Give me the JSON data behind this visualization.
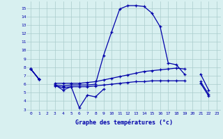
{
  "x": [
    0,
    1,
    2,
    3,
    4,
    5,
    6,
    7,
    8,
    9,
    10,
    11,
    12,
    13,
    14,
    15,
    16,
    17,
    18,
    19,
    20,
    21,
    22,
    23
  ],
  "line1": [
    7.8,
    6.6,
    null,
    5.9,
    5.3,
    5.7,
    3.2,
    4.7,
    4.5,
    5.4,
    null,
    null,
    null,
    null,
    null,
    null,
    null,
    null,
    null,
    null,
    null,
    null,
    null,
    null
  ],
  "line2": [
    7.8,
    6.6,
    null,
    5.9,
    5.8,
    5.9,
    5.9,
    5.9,
    6.0,
    9.4,
    12.2,
    14.9,
    15.3,
    15.3,
    15.2,
    14.4,
    12.8,
    8.5,
    8.3,
    7.2,
    null,
    6.3,
    4.8,
    null
  ],
  "line3": [
    7.8,
    6.6,
    null,
    6.1,
    6.1,
    6.1,
    6.1,
    6.2,
    6.3,
    6.5,
    6.7,
    6.9,
    7.1,
    7.3,
    7.5,
    7.6,
    7.7,
    7.8,
    7.9,
    7.8,
    null,
    7.2,
    5.3,
    null
  ],
  "line4": [
    7.8,
    6.6,
    null,
    5.8,
    5.6,
    5.7,
    5.7,
    5.7,
    5.8,
    5.9,
    6.0,
    6.1,
    6.2,
    6.3,
    6.3,
    6.4,
    6.4,
    6.4,
    6.4,
    6.4,
    null,
    6.1,
    4.6,
    null
  ],
  "bg_color": "#d8f0f0",
  "line_color": "#0000aa",
  "grid_color": "#aacccc",
  "xlabel": "Graphe des températures (°c)",
  "xlim": [
    -0.5,
    23.5
  ],
  "ylim": [
    2.8,
    15.8
  ],
  "yticks": [
    3,
    4,
    5,
    6,
    7,
    8,
    9,
    10,
    11,
    12,
    13,
    14,
    15
  ],
  "xticks": [
    0,
    1,
    2,
    3,
    4,
    5,
    6,
    7,
    8,
    9,
    10,
    11,
    12,
    13,
    14,
    15,
    16,
    17,
    18,
    19,
    20,
    21,
    22,
    23
  ]
}
